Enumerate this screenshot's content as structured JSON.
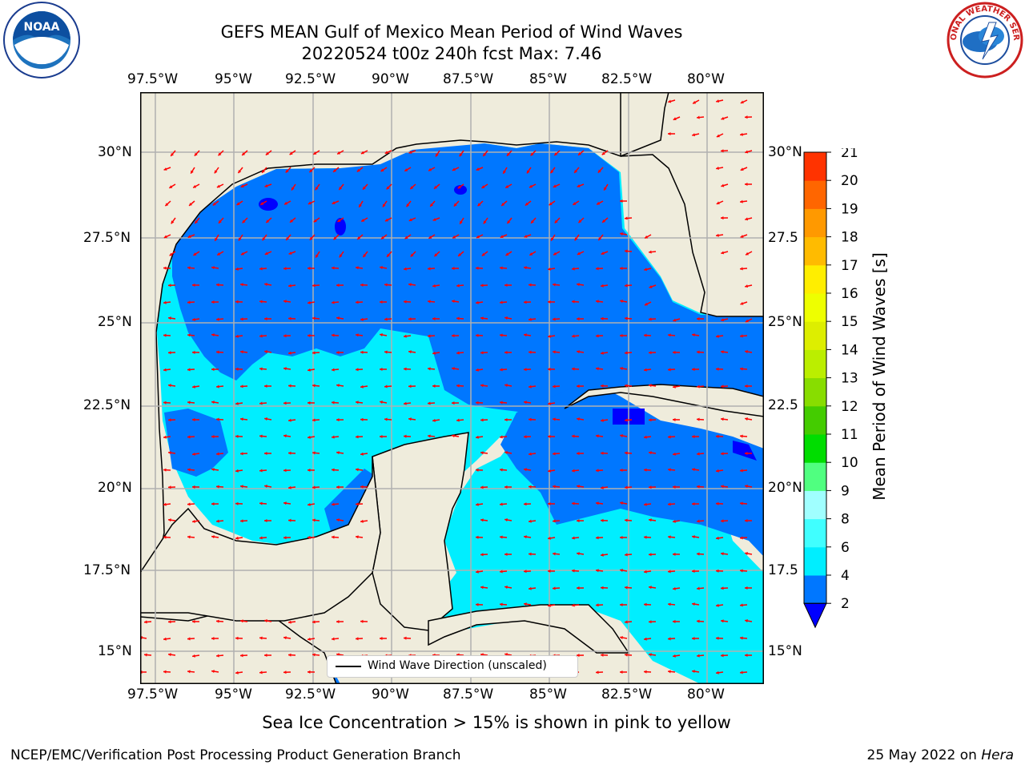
{
  "title": {
    "line1": "GEFS MEAN Gulf of Mexico Mean Period of Wind Waves",
    "line2": "20220524 t00z 240h fcst   Max: 7.46"
  },
  "map": {
    "lon_labels": [
      "97.5°W",
      "95°W",
      "92.5°W",
      "90°W",
      "87.5°W",
      "85°W",
      "82.5°W",
      "80°W"
    ],
    "lat_labels": [
      "30°N",
      "27.5°N",
      "25°N",
      "22.5°N",
      "20°N",
      "17.5°N",
      "15°N"
    ],
    "right_lat_labels": [
      "30°N",
      "27.5",
      "25°N",
      "22.5",
      "20°N",
      "17.5",
      "15°N"
    ],
    "legend_label": "Wind Wave Direction (unscaled)",
    "land_color": "#efecdc",
    "arrow_color": "#ff0000"
  },
  "colorbar": {
    "label": "Mean Period of Wind Waves [s]",
    "ticks": [
      "2",
      "4",
      "6",
      "8",
      "9",
      "10",
      "11",
      "12",
      "13",
      "14",
      "15",
      "16",
      "17",
      "18",
      "19",
      "20",
      "21"
    ],
    "colors": [
      "#0077ff",
      "#00eeff",
      "#40ffff",
      "#a0ffff",
      "#50ff80",
      "#00dd00",
      "#44cc00",
      "#88dd00",
      "#bbee00",
      "#ddee00",
      "#eeff00",
      "#ffee00",
      "#ffbb00",
      "#ff9900",
      "#ff6600",
      "#ff3300",
      "#ff0000"
    ],
    "under_color": "#0000ff"
  },
  "footnote": "Sea Ice Concentration > 15% is shown in pink to yellow",
  "credit": "NCEP/EMC/Verification Post Processing Product Generation Branch",
  "date": "25 May 2022 on ",
  "machine": "Hera",
  "logos": {
    "noaa_text": "NOAA",
    "nws_text": "NATIONAL WEATHER SERVICE"
  }
}
